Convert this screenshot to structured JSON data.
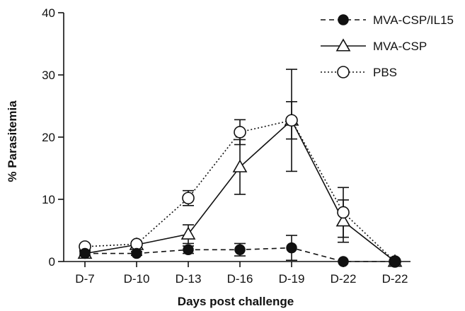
{
  "chart_data": {
    "type": "line",
    "categories": [
      "D-7",
      "D-10",
      "D-13",
      "D-16",
      "D-19",
      "D-22",
      "D-22"
    ],
    "ylabel": "% Parasitemia",
    "xlabel": "Days post challenge",
    "ylim": [
      0,
      40
    ],
    "yticks": [
      0,
      10,
      20,
      30,
      40
    ],
    "legend_position": "top-right",
    "series": [
      {
        "name": "MVA-CSP/IL15",
        "marker": "filled-circle",
        "line_style": "dashed",
        "values": [
          1.3,
          1.3,
          1.9,
          1.9,
          2.2,
          0.0,
          0.0
        ],
        "errors": [
          0.3,
          0.3,
          0.6,
          1.0,
          2.0,
          0,
          0
        ]
      },
      {
        "name": "MVA-CSP",
        "marker": "open-triangle",
        "line_style": "solid",
        "values": [
          1.3,
          2.7,
          4.4,
          15.2,
          22.7,
          6.5,
          0.0
        ],
        "errors": [
          0.5,
          0.5,
          1.5,
          4.4,
          8.2,
          3.4,
          0
        ]
      },
      {
        "name": "PBS",
        "marker": "open-circle",
        "line_style": "dotted",
        "values": [
          2.4,
          2.8,
          10.2,
          20.8,
          22.7,
          7.9,
          0.0
        ],
        "errors": [
          0.3,
          0.3,
          1.2,
          2.0,
          3.0,
          4.0,
          0
        ]
      }
    ]
  }
}
